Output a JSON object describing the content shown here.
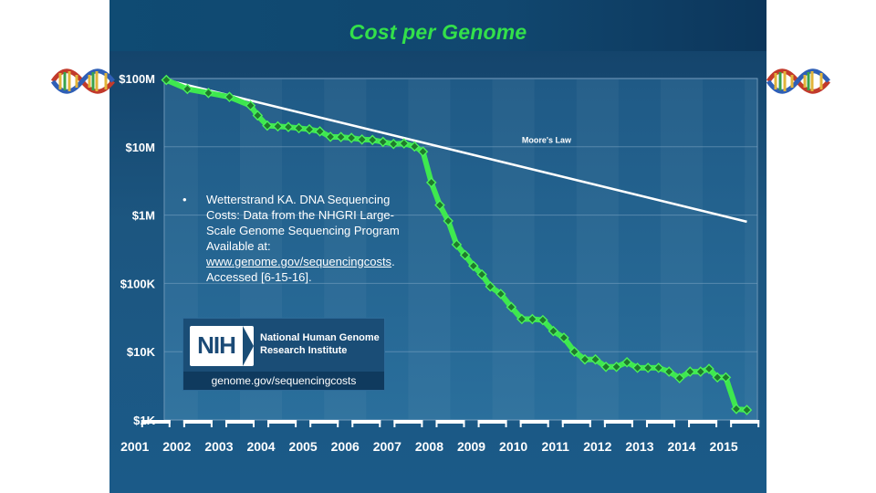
{
  "title": "Cost per Genome",
  "citation": {
    "bullet": "•",
    "text": "Wetterstrand KA. DNA Sequencing Costs: Data from the NHGRI Large-Scale Genome Sequencing Program Available at: ",
    "link": "www.genome.gov/sequencingcosts",
    "tail": ". Accessed [6-15-16]."
  },
  "logo": {
    "letters": "NIH",
    "name": "National Human Genome Research Institute",
    "url": "genome.gov/sequencingcosts"
  },
  "colors": {
    "title": "#33e04a",
    "cost_line": "#3ee84f",
    "moore_line": "#ffffff",
    "background": "#1c5680"
  },
  "chart_data": {
    "type": "line",
    "title": "Cost per Genome",
    "xlabel": "",
    "ylabel": "",
    "yscale": "log",
    "ylim": [
      1000,
      100000000
    ],
    "xlim": [
      2001.7,
      2015.8
    ],
    "y_ticks": [
      {
        "value": 100000000,
        "label": "$100M"
      },
      {
        "value": 10000000,
        "label": "$10M"
      },
      {
        "value": 1000000,
        "label": "$1M"
      },
      {
        "value": 100000,
        "label": "$100K"
      },
      {
        "value": 10000,
        "label": "$10K"
      },
      {
        "value": 1000,
        "label": "$1K"
      }
    ],
    "x_ticks": [
      "2001",
      "2002",
      "2003",
      "2004",
      "2005",
      "2006",
      "2007",
      "2008",
      "2009",
      "2010",
      "2011",
      "2012",
      "2013",
      "2014",
      "2015"
    ],
    "grid": true,
    "series": [
      {
        "type": "line",
        "marker": "diamond",
        "points": [
          [
            2001.75,
            95263072
          ],
          [
            2002.25,
            70175437
          ],
          [
            2002.75,
            61448402
          ],
          [
            2003.25,
            53751684
          ],
          [
            2003.75,
            40157554
          ],
          [
            2003.92,
            28780376
          ],
          [
            2004.15,
            20442576
          ],
          [
            2004.4,
            19934346
          ],
          [
            2004.65,
            19503346
          ],
          [
            2004.9,
            18740040
          ],
          [
            2005.15,
            18001540
          ],
          [
            2005.4,
            16807000
          ],
          [
            2005.65,
            14003000
          ],
          [
            2005.9,
            13900000
          ],
          [
            2006.15,
            13500000
          ],
          [
            2006.4,
            12800000
          ],
          [
            2006.65,
            12600000
          ],
          [
            2006.9,
            11800000
          ],
          [
            2007.15,
            11000000
          ],
          [
            2007.4,
            11200000
          ],
          [
            2007.65,
            10100000
          ],
          [
            2007.85,
            8500000
          ],
          [
            2008.05,
            3000000
          ],
          [
            2008.25,
            1400000
          ],
          [
            2008.45,
            820000
          ],
          [
            2008.65,
            370000
          ],
          [
            2008.85,
            260000
          ],
          [
            2009.05,
            180000
          ],
          [
            2009.25,
            135000
          ],
          [
            2009.45,
            90000
          ],
          [
            2009.7,
            70000
          ],
          [
            2009.95,
            45000
          ],
          [
            2010.2,
            30000
          ],
          [
            2010.45,
            30000
          ],
          [
            2010.7,
            29000
          ],
          [
            2010.95,
            20000
          ],
          [
            2011.2,
            16000
          ],
          [
            2011.45,
            10000
          ],
          [
            2011.7,
            7700
          ],
          [
            2011.95,
            7700
          ],
          [
            2012.2,
            6000
          ],
          [
            2012.45,
            6000
          ],
          [
            2012.7,
            7000
          ],
          [
            2012.95,
            5800
          ],
          [
            2013.2,
            5800
          ],
          [
            2013.45,
            5800
          ],
          [
            2013.7,
            5100
          ],
          [
            2013.95,
            4100
          ],
          [
            2014.2,
            5100
          ],
          [
            2014.45,
            5100
          ],
          [
            2014.65,
            5600
          ],
          [
            2014.85,
            4200
          ],
          [
            2015.05,
            4200
          ],
          [
            2015.3,
            1450
          ],
          [
            2015.55,
            1400
          ]
        ]
      },
      {
        "name": "Moore's Law",
        "type": "line",
        "marker": "none",
        "points": [
          [
            2001.75,
            95263072
          ],
          [
            2015.55,
            800000
          ]
        ]
      }
    ],
    "annotations": [
      {
        "text": "Moore's Law",
        "x": 2010.2,
        "y": 11500000
      }
    ]
  }
}
